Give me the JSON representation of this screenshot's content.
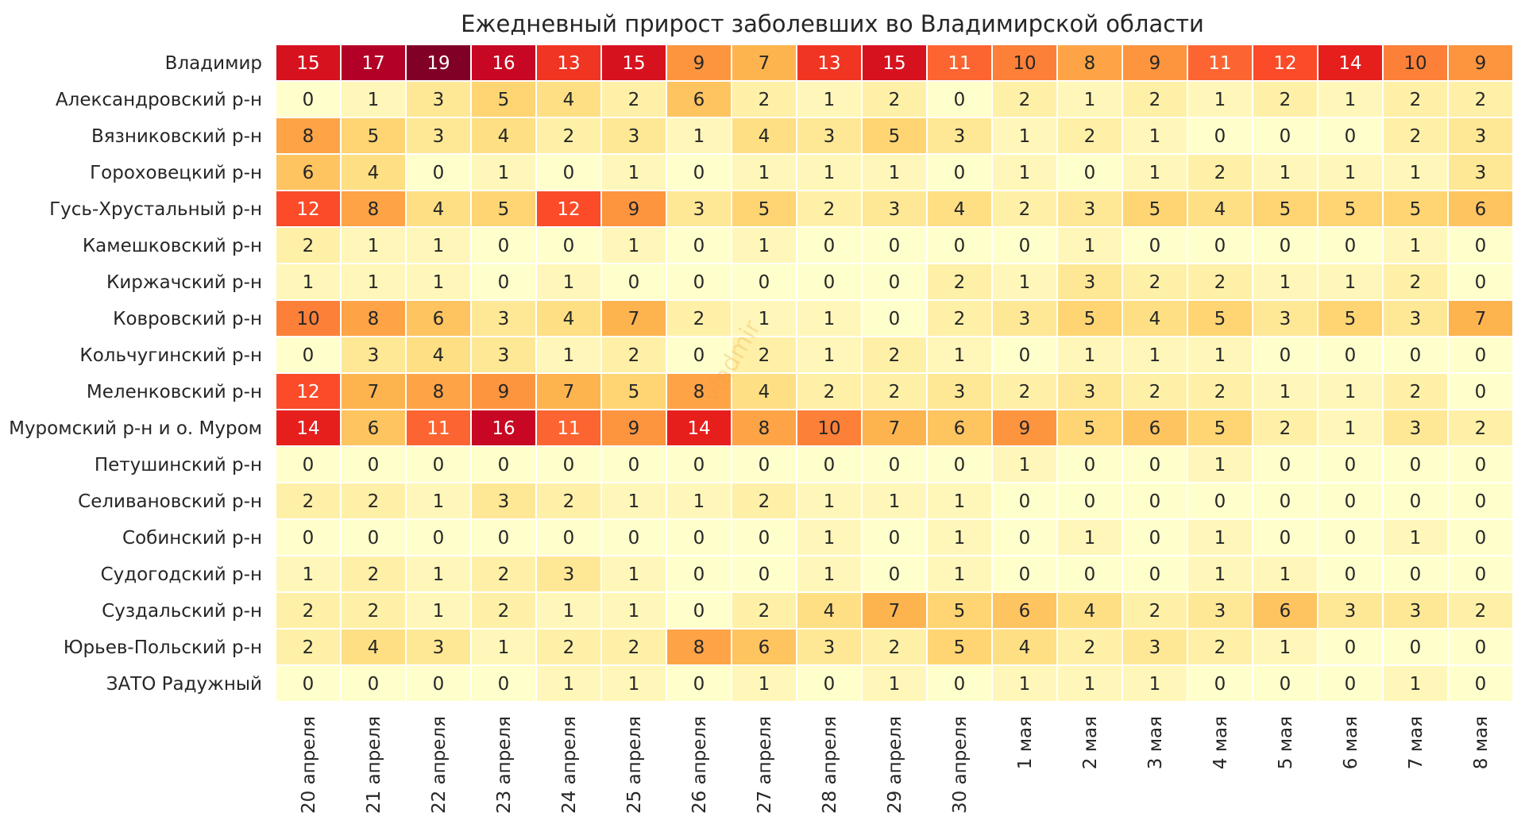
{
  "chart_data": {
    "type": "heatmap",
    "title": "Ежедневный прирост заболевших во Владимирской области",
    "watermark": "vladmir",
    "colormap": "YlOrRd",
    "value_range": [
      0,
      19
    ],
    "rows": [
      "Владимир",
      "Александровский р-н",
      "Вязниковский р-н",
      "Гороховецкий р-н",
      "Гусь-Хрустальный р-н",
      "Камешковский р-н",
      "Киржачский р-н",
      "Ковровский р-н",
      "Кольчугинский р-н",
      "Меленковский р-н",
      "Муромский р-н и о. Муром",
      "Петушинский р-н",
      "Селивановский р-н",
      "Собинский р-н",
      "Судогодский р-н",
      "Суздальский р-н",
      "Юрьев-Польский р-н",
      "ЗАТО Радужный"
    ],
    "columns": [
      "20 апреля",
      "21 апреля",
      "22 апреля",
      "23 апреля",
      "24 апреля",
      "25 апреля",
      "26 апреля",
      "27 апреля",
      "28 апреля",
      "29 апреля",
      "30 апреля",
      "1 мая",
      "2 мая",
      "3 мая",
      "4 мая",
      "5 мая",
      "6 мая",
      "7 мая",
      "8 мая"
    ],
    "values": [
      [
        15,
        17,
        19,
        16,
        13,
        15,
        9,
        7,
        13,
        15,
        11,
        10,
        8,
        9,
        11,
        12,
        14,
        10,
        9
      ],
      [
        0,
        1,
        3,
        5,
        4,
        2,
        6,
        2,
        1,
        2,
        0,
        2,
        1,
        2,
        1,
        2,
        1,
        2,
        2
      ],
      [
        8,
        5,
        3,
        4,
        2,
        3,
        1,
        4,
        3,
        5,
        3,
        1,
        2,
        1,
        0,
        0,
        0,
        2,
        3
      ],
      [
        6,
        4,
        0,
        1,
        0,
        1,
        0,
        1,
        1,
        1,
        0,
        1,
        0,
        1,
        2,
        1,
        1,
        1,
        3
      ],
      [
        12,
        8,
        4,
        5,
        12,
        9,
        3,
        5,
        2,
        3,
        4,
        2,
        3,
        5,
        4,
        5,
        5,
        5,
        6
      ],
      [
        2,
        1,
        1,
        0,
        0,
        1,
        0,
        1,
        0,
        0,
        0,
        0,
        1,
        0,
        0,
        0,
        0,
        1,
        0
      ],
      [
        1,
        1,
        1,
        0,
        1,
        0,
        0,
        0,
        0,
        0,
        2,
        1,
        3,
        2,
        2,
        1,
        1,
        2,
        0
      ],
      [
        10,
        8,
        6,
        3,
        4,
        7,
        2,
        1,
        1,
        0,
        2,
        3,
        5,
        4,
        5,
        3,
        5,
        3,
        7
      ],
      [
        0,
        3,
        4,
        3,
        1,
        2,
        0,
        2,
        1,
        2,
        1,
        0,
        1,
        1,
        1,
        0,
        0,
        0,
        0
      ],
      [
        12,
        7,
        8,
        9,
        7,
        5,
        8,
        4,
        2,
        2,
        3,
        2,
        3,
        2,
        2,
        1,
        1,
        2,
        0
      ],
      [
        14,
        6,
        11,
        16,
        11,
        9,
        14,
        8,
        10,
        7,
        6,
        9,
        5,
        6,
        5,
        2,
        1,
        3,
        2
      ],
      [
        0,
        0,
        0,
        0,
        0,
        0,
        0,
        0,
        0,
        0,
        0,
        1,
        0,
        0,
        1,
        0,
        0,
        0,
        0
      ],
      [
        2,
        2,
        1,
        3,
        2,
        1,
        1,
        2,
        1,
        1,
        1,
        0,
        0,
        0,
        0,
        0,
        0,
        0,
        0
      ],
      [
        0,
        0,
        0,
        0,
        0,
        0,
        0,
        0,
        1,
        0,
        1,
        0,
        1,
        0,
        1,
        0,
        0,
        1,
        0
      ],
      [
        1,
        2,
        1,
        2,
        3,
        1,
        0,
        0,
        1,
        0,
        1,
        0,
        0,
        0,
        1,
        1,
        0,
        0,
        0
      ],
      [
        2,
        2,
        1,
        2,
        1,
        1,
        0,
        2,
        4,
        7,
        5,
        6,
        4,
        2,
        3,
        6,
        3,
        3,
        2
      ],
      [
        2,
        4,
        3,
        1,
        2,
        2,
        8,
        6,
        3,
        2,
        5,
        4,
        2,
        3,
        2,
        1,
        0,
        0,
        0
      ],
      [
        0,
        0,
        0,
        0,
        1,
        1,
        0,
        1,
        0,
        1,
        0,
        1,
        1,
        1,
        0,
        0,
        0,
        1,
        0
      ]
    ]
  }
}
